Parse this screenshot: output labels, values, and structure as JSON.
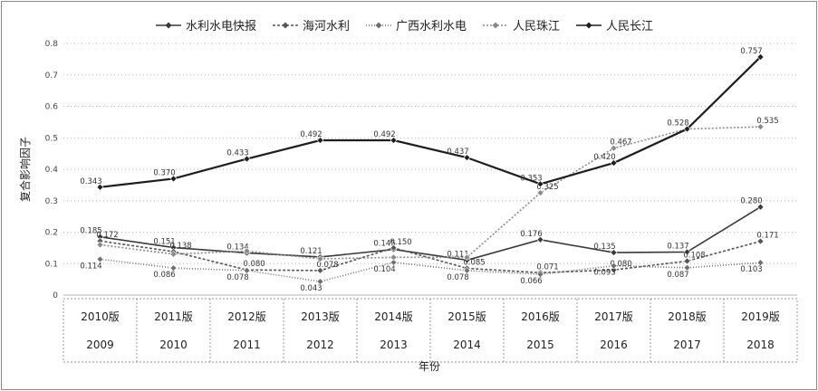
{
  "chart_data": {
    "type": "line",
    "categories": [
      {
        "edition": "2010版",
        "year": "2009"
      },
      {
        "edition": "2011版",
        "year": "2010"
      },
      {
        "edition": "2012版",
        "year": "2011"
      },
      {
        "edition": "2013版",
        "year": "2012"
      },
      {
        "edition": "2014版",
        "year": "2013"
      },
      {
        "edition": "2015版",
        "year": "2014"
      },
      {
        "edition": "2016版",
        "year": "2015"
      },
      {
        "edition": "2017版",
        "year": "2016"
      },
      {
        "edition": "2018版",
        "year": "2017"
      },
      {
        "edition": "2019版",
        "year": "2018"
      }
    ],
    "xlabel": "年份",
    "ylabel": "复合影响因子",
    "ylim": [
      0,
      0.8
    ],
    "yticks": [
      "0",
      "0.1",
      "0.2",
      "0.3",
      "0.4",
      "0.5",
      "0.6",
      "0.7",
      "0.8"
    ],
    "grid": "horizontal dotted",
    "legend_position": "top",
    "series": [
      {
        "name": "水利水电快报",
        "color": "#3a3a3a",
        "marker": "diamond",
        "dash": "",
        "values": [
          0.185,
          0.151,
          0.134,
          0.121,
          0.145,
          0.111,
          0.176,
          0.135,
          0.137,
          0.28
        ],
        "labels": [
          "0.185",
          "0.151",
          "0.134",
          "0.121",
          "0.145",
          "0.111",
          "0.176",
          "0.135",
          "0.137",
          "0.280"
        ]
      },
      {
        "name": "海河水利",
        "color": "#555555",
        "marker": "diamond",
        "dash": "3 2",
        "values": [
          0.172,
          0.138,
          0.08,
          0.078,
          0.15,
          0.085,
          0.071,
          0.08,
          0.108,
          0.171
        ],
        "labels": [
          "0.172",
          "0.138",
          "0.080",
          "0.078",
          "0.150",
          "0.085",
          "0.071",
          "0.080",
          "0.108",
          "0.171"
        ]
      },
      {
        "name": "广西水利水电",
        "color": "#6f6f6f",
        "marker": "diamond",
        "dash": "1 2",
        "values": [
          0.114,
          0.086,
          0.078,
          0.043,
          0.104,
          0.078,
          0.066,
          0.093,
          0.087,
          0.103
        ],
        "labels": [
          "0.114",
          "0.086",
          "0.078",
          "0.043",
          "0.104",
          "0.078",
          "0.066",
          "0.093",
          "0.087",
          "0.103"
        ]
      },
      {
        "name": "人民珠江",
        "color": "#8a8a8a",
        "marker": "diamond",
        "dash": "2 2",
        "values": [
          0.16,
          0.13,
          0.14,
          0.115,
          0.12,
          0.12,
          0.325,
          0.467,
          0.528,
          0.535
        ],
        "labels": [
          "",
          "",
          "",
          "",
          "",
          "",
          "0.325",
          "0.467",
          "",
          "0.535"
        ]
      },
      {
        "name": "人民长江",
        "color": "#1e1e1e",
        "marker": "diamond",
        "dash": "",
        "values": [
          0.343,
          0.37,
          0.433,
          0.492,
          0.492,
          0.437,
          0.353,
          0.42,
          0.528,
          0.757
        ],
        "labels": [
          "0.343",
          "0.370",
          "0.433",
          "0.492",
          "0.492",
          "0.437",
          "0.353",
          "0.420",
          "0.528",
          "0.757"
        ]
      }
    ]
  }
}
